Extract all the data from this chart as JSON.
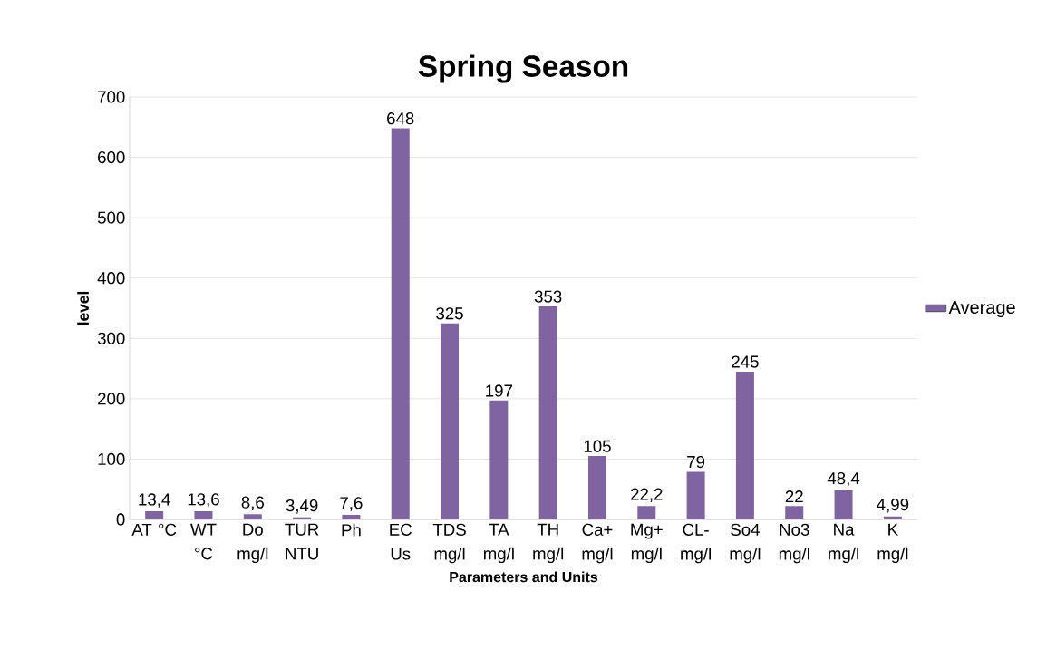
{
  "chart_data": {
    "type": "bar",
    "title": "Spring Season",
    "xlabel": "Parameters and Units",
    "ylabel": "level",
    "categories": [
      "AT °C",
      "WT °C",
      "Do mg/l",
      "TUR NTU",
      "Ph",
      "EC Us",
      "TDS mg/l",
      "TA mg/l",
      "TH mg/l",
      "Ca+ mg/l",
      "Mg+ mg/l",
      "CL- mg/l",
      "So4 mg/l",
      "No3 mg/l",
      "Na mg/l",
      "K mg/l"
    ],
    "series": [
      {
        "name": "Average",
        "color": "#8064a2",
        "values": [
          13.4,
          13.6,
          8.6,
          3.49,
          7.6,
          648,
          325,
          197,
          353,
          105,
          22.2,
          79,
          245,
          22,
          48.4,
          4.99
        ],
        "value_labels": [
          "13,4",
          "13,6",
          "8,6",
          "3,49",
          "7,6",
          "648",
          "325",
          "197",
          "353",
          "105",
          "22,2",
          "79",
          "245",
          "22",
          "48,4",
          "4,99"
        ]
      }
    ],
    "ylim": [
      0,
      700
    ],
    "yticks": [
      0,
      100,
      200,
      300,
      400,
      500,
      600,
      700
    ],
    "grid": "y",
    "legend": "right"
  }
}
